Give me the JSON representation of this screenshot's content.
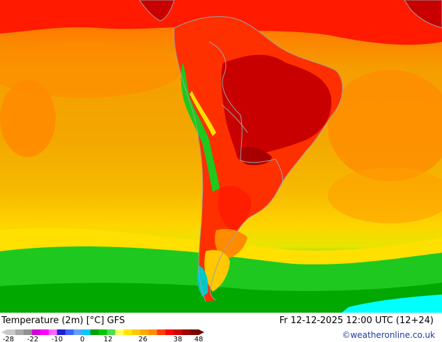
{
  "map": {
    "region": "South America",
    "colors": {
      "sea_far": "#f0a000",
      "sea_mid": "#f5b400",
      "warm_orange": "#ff8c00",
      "hot_red": "#ff1a00",
      "deep_red": "#d40000",
      "darkest_red": "#b00000",
      "yellow": "#ffd200",
      "light_yellow": "#ffe600",
      "green": "#1ec81e",
      "dark_green": "#00a000",
      "cyan": "#00ffff",
      "land_border": "#a0a0a0"
    }
  },
  "footer": {
    "title": "Temperature (2m) [°C] GFS",
    "datetime": "Fr 12-12-2025 12:00 UTC (12+24)",
    "credit": "©weatheronline.co.uk"
  },
  "legend": {
    "tick_labels": [
      "-28",
      "-22",
      "-10",
      "0",
      "12",
      "26",
      "38",
      "48"
    ],
    "colors": [
      "#c8c8c8",
      "#a8a8a8",
      "#909090",
      "#d200d2",
      "#ff00ff",
      "#ff64ff",
      "#1e1ed2",
      "#3c64ff",
      "#64a0ff",
      "#00c8ff",
      "#00a000",
      "#00c800",
      "#50dc50",
      "#ffff64",
      "#ffe600",
      "#ffc800",
      "#ffaa00",
      "#ff8c00",
      "#ff3c00",
      "#ff0000",
      "#d20000",
      "#a00000",
      "#780000"
    ]
  }
}
